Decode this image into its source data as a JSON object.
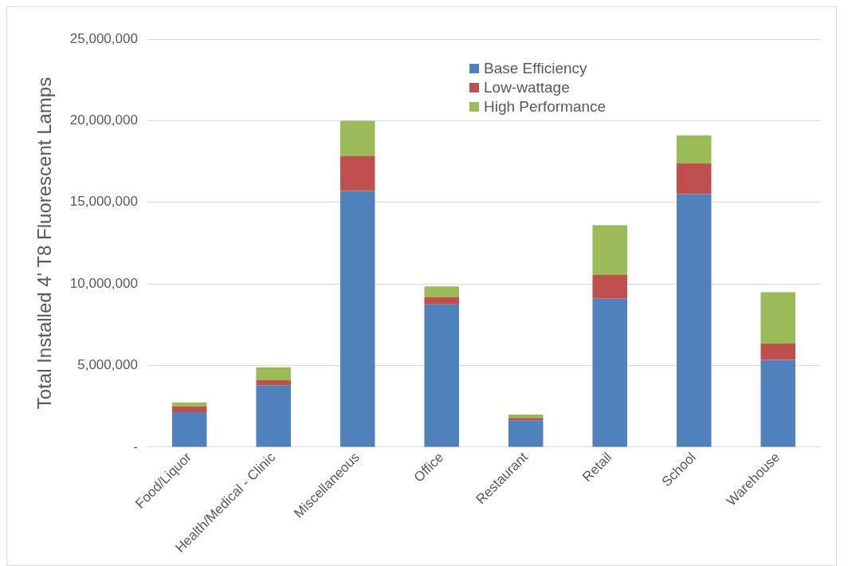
{
  "chart_data": {
    "type": "bar",
    "stacked": true,
    "ylabel": "Total Installed 4' T8 Fluorescent Lamps",
    "categories": [
      "Food/Liquor",
      "Health/Medical - Clinic",
      "Miscellaneous",
      "Office",
      "Restaurant",
      "Retail",
      "School",
      "Warehouse"
    ],
    "series": [
      {
        "name": "Base Efficiency",
        "color": "#4f81bd",
        "values": [
          2150000,
          3800000,
          15700000,
          8750000,
          1650000,
          9100000,
          15500000,
          5350000
        ]
      },
      {
        "name": "Low-wattage",
        "color": "#c0504d",
        "values": [
          350000,
          300000,
          2150000,
          450000,
          150000,
          1450000,
          1900000,
          1000000
        ]
      },
      {
        "name": "High Performance",
        "color": "#9bbb59",
        "values": [
          250000,
          800000,
          2150000,
          650000,
          200000,
          3050000,
          1700000,
          3150000
        ]
      }
    ],
    "ylim": [
      0,
      25000000
    ],
    "yticks": [
      {
        "value": 0,
        "label": "-"
      },
      {
        "value": 5000000,
        "label": "5,000,000"
      },
      {
        "value": 10000000,
        "label": "10,000,000"
      },
      {
        "value": 15000000,
        "label": "15,000,000"
      },
      {
        "value": 20000000,
        "label": "20,000,000"
      },
      {
        "value": 25000000,
        "label": "25,000,000"
      }
    ],
    "grid": "y",
    "legend": "top right"
  }
}
